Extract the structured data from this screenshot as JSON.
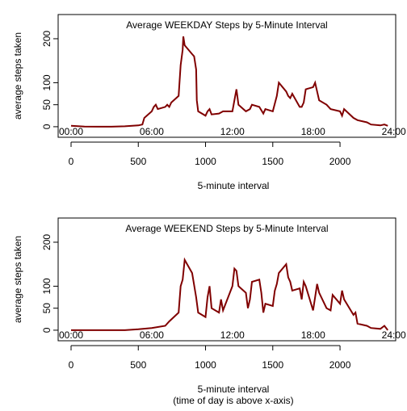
{
  "chart_data": [
    {
      "type": "line",
      "title": "Average WEEKDAY Steps by 5-Minute Interval",
      "x_label": "5-minute interval",
      "y_label": "average steps taken",
      "xlim": [
        -96,
        2414
      ],
      "ylim": [
        -24,
        255
      ],
      "xticks": [
        0,
        500,
        1000,
        1500,
        2000
      ],
      "yticks": [
        0,
        50,
        100,
        200
      ],
      "time_labels": [
        {
          "x": 0,
          "label": "00:00"
        },
        {
          "x": 600,
          "label": "06:00"
        },
        {
          "x": 1200,
          "label": "12:00"
        },
        {
          "x": 1800,
          "label": "18:00"
        },
        {
          "x": 2400,
          "label": "24:00"
        }
      ],
      "series": [
        {
          "color": "#800000",
          "x": [
            0,
            100,
            200,
            300,
            400,
            500,
            530,
            545,
            600,
            615,
            630,
            645,
            700,
            715,
            730,
            745,
            800,
            815,
            830,
            835,
            845,
            900,
            915,
            930,
            935,
            945,
            1000,
            1015,
            1030,
            1045,
            1100,
            1130,
            1200,
            1215,
            1230,
            1245,
            1300,
            1330,
            1345,
            1400,
            1430,
            1445,
            1500,
            1530,
            1545,
            1600,
            1615,
            1630,
            1645,
            1700,
            1715,
            1730,
            1745,
            1800,
            1815,
            1830,
            1845,
            1900,
            1930,
            2000,
            2015,
            2030,
            2100,
            2130,
            2200,
            2230,
            2300,
            2330,
            2355
          ],
          "values": [
            2,
            0.5,
            0,
            0,
            1,
            3,
            5,
            20,
            35,
            45,
            50,
            40,
            45,
            50,
            45,
            55,
            70,
            140,
            175,
            205,
            185,
            165,
            160,
            130,
            60,
            35,
            25,
            35,
            40,
            28,
            30,
            35,
            35,
            60,
            85,
            50,
            35,
            40,
            50,
            45,
            30,
            40,
            35,
            70,
            100,
            80,
            70,
            65,
            75,
            45,
            45,
            55,
            85,
            90,
            100,
            80,
            60,
            50,
            40,
            35,
            25,
            40,
            20,
            15,
            10,
            5,
            3,
            5,
            2
          ]
        }
      ]
    },
    {
      "type": "line",
      "title": "Average WEEKEND Steps by 5-Minute Interval",
      "x_label": "5-minute interval",
      "x_label_note": "(time of day is above x-axis)",
      "y_label": "average steps taken",
      "xlim": [
        -96,
        2414
      ],
      "ylim": [
        -24,
        255
      ],
      "xticks": [
        0,
        500,
        1000,
        1500,
        2000
      ],
      "yticks": [
        0,
        50,
        100,
        200
      ],
      "time_labels": [
        {
          "x": 0,
          "label": "00:00"
        },
        {
          "x": 600,
          "label": "06:00"
        },
        {
          "x": 1200,
          "label": "12:00"
        },
        {
          "x": 1800,
          "label": "18:00"
        },
        {
          "x": 2400,
          "label": "24:00"
        }
      ],
      "series": [
        {
          "color": "#800000",
          "x": [
            0,
            400,
            500,
            600,
            700,
            730,
            800,
            815,
            830,
            845,
            900,
            930,
            945,
            1000,
            1015,
            1030,
            1045,
            1100,
            1115,
            1130,
            1200,
            1215,
            1230,
            1245,
            1300,
            1315,
            1330,
            1345,
            1400,
            1415,
            1430,
            1445,
            1500,
            1515,
            1530,
            1545,
            1600,
            1615,
            1630,
            1645,
            1700,
            1715,
            1730,
            1745,
            1800,
            1815,
            1830,
            1845,
            1900,
            1930,
            1945,
            2000,
            2015,
            2030,
            2100,
            2115,
            2130,
            2200,
            2230,
            2300,
            2330,
            2355
          ],
          "values": [
            0,
            0,
            2,
            5,
            10,
            20,
            40,
            100,
            115,
            160,
            130,
            75,
            40,
            30,
            75,
            100,
            50,
            40,
            70,
            45,
            100,
            140,
            135,
            100,
            85,
            50,
            70,
            110,
            115,
            85,
            40,
            60,
            55,
            90,
            105,
            130,
            150,
            120,
            110,
            90,
            95,
            70,
            110,
            100,
            45,
            75,
            105,
            85,
            50,
            45,
            80,
            60,
            90,
            70,
            35,
            40,
            15,
            10,
            5,
            3,
            10,
            0
          ]
        }
      ]
    }
  ]
}
